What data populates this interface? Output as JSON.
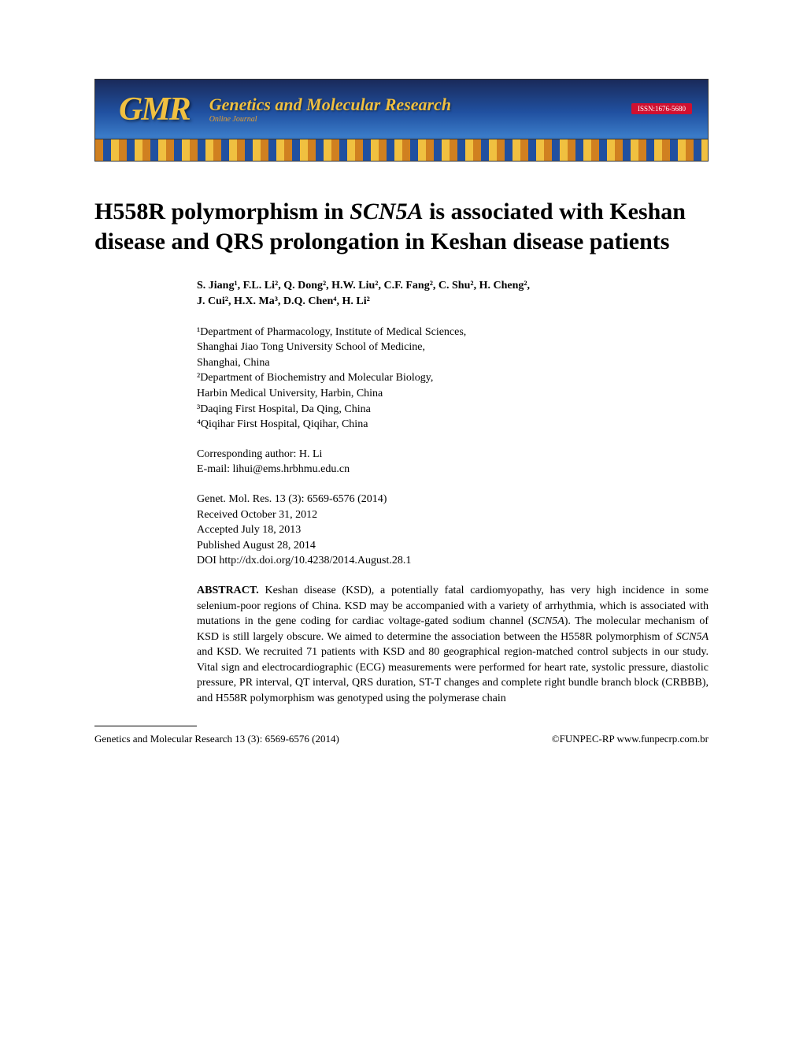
{
  "banner": {
    "logo": "GMR",
    "title": "Genetics and Molecular Research",
    "subtitle": "Online Journal",
    "issn": "ISSN:1676-5680",
    "colors": {
      "bg_top": "#1a2a5a",
      "bg_mid": "#2050a0",
      "bg_bottom": "#3a7bc8",
      "text_gold": "#f0c040",
      "text_orange": "#e8a030",
      "issn_bg": "#d01030"
    }
  },
  "title_prefix": "H558R polymorphism in ",
  "title_italic": "SCN5A",
  "title_suffix": " is associated with Keshan disease and QRS prolongation in Keshan disease patients",
  "authors_line1": "S. Jiang¹, F.L. Li², Q. Dong², H.W. Liu², C.F. Fang², C. Shu², H. Cheng²,",
  "authors_line2": "J. Cui², H.X. Ma³, D.Q. Chen⁴, H. Li²",
  "affiliations": {
    "a1": "¹Department of Pharmacology, Institute of Medical Sciences,",
    "a1b": "Shanghai Jiao Tong University School of Medicine,",
    "a1c": "Shanghai, China",
    "a2": "²Department of Biochemistry and Molecular Biology,",
    "a2b": "Harbin Medical University, Harbin, China",
    "a3": "³Daqing First Hospital, Da Qing, China",
    "a4": "⁴Qiqihar First Hospital, Qiqihar, China"
  },
  "corresponding": {
    "l1": "Corresponding author: H. Li",
    "l2": "E-mail: lihui@ems.hrbhmu.edu.cn"
  },
  "pubinfo": {
    "citation": "Genet. Mol. Res. 13 (3): 6569-6576 (2014)",
    "received": "Received October 31, 2012",
    "accepted": "Accepted July 18, 2013",
    "published": "Published August 28, 2014",
    "doi": "DOI http://dx.doi.org/10.4238/2014.August.28.1"
  },
  "abstract": {
    "label": "ABSTRACT.",
    "p1a": " Keshan disease (KSD), a potentially fatal cardiomyopathy, has very high incidence in some selenium-poor regions of China. KSD may be accompanied with a variety of arrhythmia, which is associated with mutations in the gene coding for cardiac voltage-gated sodium channel (",
    "p1_italic1": "SCN5A",
    "p1b": "). The molecular mechanism of KSD is still largely obscure. We aimed to determine the association between the H558R polymorphism of ",
    "p1_italic2": "SCN5A",
    "p1c": " and KSD. We recruited 71 patients with KSD and 80 geographical region-matched control subjects in our study. Vital sign and electrocardiographic (ECG) measurements were performed for heart rate, systolic pressure, diastolic pressure, PR interval, QT interval, QRS duration, ST-T changes and complete right bundle branch block (CRBBB), and H558R polymorphism was genotyped using the polymerase chain"
  },
  "footer": {
    "left": "Genetics and Molecular Research 13 (3): 6569-6576 (2014)",
    "right": "©FUNPEC-RP www.funpecrp.com.br"
  }
}
